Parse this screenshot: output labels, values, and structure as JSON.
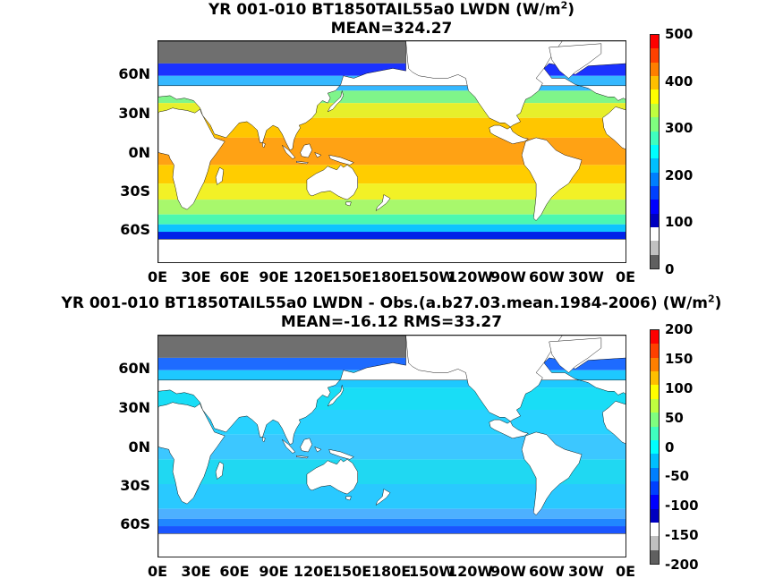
{
  "panels": [
    {
      "title_line1": "YR 001-010 BT1850TAIL55a0 LWDN (W/m",
      "title_sup": "2",
      "title_close": ")",
      "title_line2": "MEAN=324.27",
      "lat_labels": [
        "60N",
        "30N",
        "0N",
        "30S",
        "60S"
      ],
      "lon_labels": [
        "0E",
        "30E",
        "60E",
        "90E",
        "120E",
        "150E",
        "180E",
        "150W",
        "120W",
        "90W",
        "60W",
        "30W",
        "0E"
      ],
      "colorbar_ticks": [
        "500",
        "400",
        "300",
        "200",
        "100",
        "0"
      ],
      "colorbar_colors": [
        "#ff0000",
        "#ff4000",
        "#ff7f00",
        "#ffbf00",
        "#ffff00",
        "#bfff3f",
        "#7fff7f",
        "#3fffbf",
        "#00ffff",
        "#00bfff",
        "#007fff",
        "#0040ff",
        "#0000ff",
        "#0000bf",
        "#ffffff",
        "#c0c0c0",
        "#606060"
      ],
      "ocean_bands": [
        {
          "lat_from": 90,
          "lat_to": 72,
          "color": "#6f6f6f"
        },
        {
          "lat_from": 72,
          "lat_to": 62,
          "color": "#1b32ff"
        },
        {
          "lat_from": 62,
          "lat_to": 50,
          "color": "#35b8ff"
        },
        {
          "lat_from": 50,
          "lat_to": 40,
          "color": "#7ff58a"
        },
        {
          "lat_from": 40,
          "lat_to": 28,
          "color": "#e7ef2b"
        },
        {
          "lat_from": 28,
          "lat_to": 12,
          "color": "#ffc600"
        },
        {
          "lat_from": 12,
          "lat_to": -10,
          "color": "#ffa214"
        },
        {
          "lat_from": -10,
          "lat_to": -25,
          "color": "#ffcd00"
        },
        {
          "lat_from": -25,
          "lat_to": -38,
          "color": "#f2f126"
        },
        {
          "lat_from": -38,
          "lat_to": -50,
          "color": "#a8f86c"
        },
        {
          "lat_from": -50,
          "lat_to": -58,
          "color": "#4cf8b0"
        },
        {
          "lat_from": -58,
          "lat_to": -64,
          "color": "#0ec4ff"
        },
        {
          "lat_from": -64,
          "lat_to": -70,
          "color": "#0022e8"
        },
        {
          "lat_from": -70,
          "lat_to": -90,
          "color": "#6f6f6f"
        }
      ]
    },
    {
      "title_line1": "YR 001-010 BT1850TAIL55a0 LWDN - Obs.(a.b27.03.mean.1984-2006) (W/m",
      "title_sup": "2",
      "title_close": ")",
      "title_line2": "MEAN=-16.12 RMS=33.27",
      "lat_labels": [
        "60N",
        "30N",
        "0N",
        "30S",
        "60S"
      ],
      "lon_labels": [
        "0E",
        "30E",
        "60E",
        "90E",
        "120E",
        "150E",
        "180E",
        "150W",
        "120W",
        "90W",
        "60W",
        "30W",
        "0E"
      ],
      "colorbar_ticks": [
        "200",
        "150",
        "100",
        "50",
        "0",
        "-50",
        "-100",
        "-150",
        "-200"
      ],
      "colorbar_colors": [
        "#ff0000",
        "#ff4000",
        "#ff7f00",
        "#ffbf00",
        "#ffff00",
        "#bfff3f",
        "#7fff7f",
        "#3fffbf",
        "#00ffff",
        "#00bfff",
        "#007fff",
        "#0040ff",
        "#0000ff",
        "#0000bf",
        "#ffffff",
        "#c0c0c0",
        "#606060"
      ],
      "ocean_bands": [
        {
          "lat_from": 90,
          "lat_to": 72,
          "color": "#6f6f6f"
        },
        {
          "lat_from": 72,
          "lat_to": 62,
          "color": "#1e6bff"
        },
        {
          "lat_from": 62,
          "lat_to": 48,
          "color": "#1ec8ff"
        },
        {
          "lat_from": 48,
          "lat_to": 30,
          "color": "#19ddf6"
        },
        {
          "lat_from": 30,
          "lat_to": 10,
          "color": "#28d2ff"
        },
        {
          "lat_from": 10,
          "lat_to": -10,
          "color": "#3cc7ff"
        },
        {
          "lat_from": -10,
          "lat_to": -30,
          "color": "#20d8f2"
        },
        {
          "lat_from": -30,
          "lat_to": -50,
          "color": "#29c9ff"
        },
        {
          "lat_from": -50,
          "lat_to": -58,
          "color": "#4db0ff"
        },
        {
          "lat_from": -58,
          "lat_to": -64,
          "color": "#2087ff"
        },
        {
          "lat_from": -64,
          "lat_to": -70,
          "color": "#1a55ff"
        },
        {
          "lat_from": -70,
          "lat_to": -90,
          "color": "#6f6f6f"
        }
      ]
    }
  ]
}
